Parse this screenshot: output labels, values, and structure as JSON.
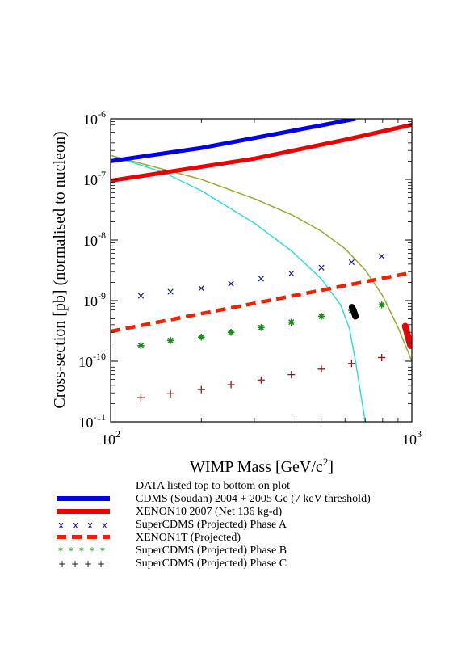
{
  "chart_data": {
    "type": "line",
    "xlabel": "WIMP Mass [GeV/c^2]",
    "ylabel": "Cross-section [pb] (normalised to nucleon)",
    "xscale": "log",
    "yscale": "log",
    "xlim": [
      100,
      1000
    ],
    "ylim": [
      1e-11,
      1e-06
    ],
    "x_tick_labels": [
      {
        "base": "10",
        "exp": "2"
      },
      {
        "base": "10",
        "exp": "3"
      }
    ],
    "y_tick_labels": [
      {
        "base": "10",
        "exp": "-11"
      },
      {
        "base": "10",
        "exp": "-10"
      },
      {
        "base": "10",
        "exp": "-9"
      },
      {
        "base": "10",
        "exp": "-8"
      },
      {
        "base": "10",
        "exp": "-7"
      },
      {
        "base": "10",
        "exp": "-6"
      }
    ],
    "grid": false,
    "legend_placement": "below plot",
    "legend_title": "DATA listed top to bottom on plot",
    "series": [
      {
        "name": "CDMS (Soudan) 2004 + 2005 Ge (7 keV threshold)",
        "style": "line",
        "color": "#0000ee",
        "x": [
          100,
          200,
          400,
          650
        ],
        "y": [
          2e-07,
          3.3e-07,
          6.3e-07,
          1e-06
        ]
      },
      {
        "name": "XENON10 2007 (Net 136 kg-d)",
        "style": "line",
        "color": "#ee0000",
        "x": [
          100,
          300,
          600,
          1000
        ],
        "y": [
          9.5e-08,
          2.2e-07,
          4.5e-07,
          8e-07
        ]
      },
      {
        "name": "SuperCDMS (Projected) Phase A",
        "style": "x-markers",
        "color": "#1a1a8c",
        "x": [
          126,
          158,
          200,
          251,
          316,
          398,
          501,
          631,
          794
        ],
        "y": [
          1.2e-09,
          1.4e-09,
          1.6e-09,
          1.9e-09,
          2.3e-09,
          2.8e-09,
          3.5e-09,
          4.3e-09,
          5.4e-09
        ]
      },
      {
        "name": "XENON1T (Projected)",
        "style": "dashed",
        "color": "#ee2200",
        "x": [
          100,
          1000
        ],
        "y": [
          3.1e-10,
          2.9e-09
        ]
      },
      {
        "name": "SuperCDMS (Projected) Phase B",
        "style": "star-markers",
        "color": "#1a8c1a",
        "x": [
          126,
          158,
          200,
          251,
          316,
          398,
          501,
          631,
          794
        ],
        "y": [
          1.8e-10,
          2.2e-10,
          2.5e-10,
          3e-10,
          3.6e-10,
          4.4e-10,
          5.5e-10,
          6.9e-10,
          8.5e-10
        ]
      },
      {
        "name": "SuperCDMS (Projected) Phase C",
        "style": "plus-markers",
        "color": "#8c1a1a",
        "x": [
          126,
          158,
          200,
          251,
          316,
          398,
          501,
          631,
          794
        ],
        "y": [
          2.5e-11,
          2.9e-11,
          3.4e-11,
          4.1e-11,
          4.9e-11,
          6e-11,
          7.4e-11,
          9.2e-11,
          1.15e-10
        ]
      }
    ],
    "extra_curves": [
      {
        "color": "#33dddd",
        "x": [
          100,
          150,
          200,
          300,
          400,
          500,
          580,
          620,
          650,
          680,
          700
        ],
        "y": [
          2.5e-07,
          1.3e-07,
          6.5e-08,
          1.9e-08,
          6.5e-09,
          2.3e-09,
          8.5e-10,
          3.5e-10,
          1e-10,
          2.5e-11,
          1e-11
        ]
      },
      {
        "color": "#9aaa33",
        "x": [
          100,
          200,
          300,
          400,
          500,
          600,
          700,
          800,
          900,
          1000
        ],
        "y": [
          2.5e-07,
          1e-07,
          4.8e-08,
          2.6e-08,
          1.4e-08,
          7.2e-09,
          3.2e-09,
          1.2e-09,
          3.6e-10,
          1e-10
        ]
      }
    ],
    "highlights": [
      {
        "color": "#000000",
        "x": [
          633,
          642,
          650
        ],
        "y": [
          7.8e-10,
          6.6e-10,
          5.5e-10
        ]
      },
      {
        "color": "#ee0000",
        "x": [
          950,
          970,
          990
        ],
        "y": [
          3.8e-10,
          2.6e-10,
          1.8e-10
        ]
      }
    ]
  },
  "legend_samples": {
    "phase_a_symbols": [
      "x",
      "x",
      "x",
      "x"
    ],
    "phase_b_symbols": [
      "*",
      "*",
      "*",
      "*",
      "*"
    ],
    "phase_c_symbols": [
      "+",
      "+",
      "+",
      "+"
    ]
  }
}
